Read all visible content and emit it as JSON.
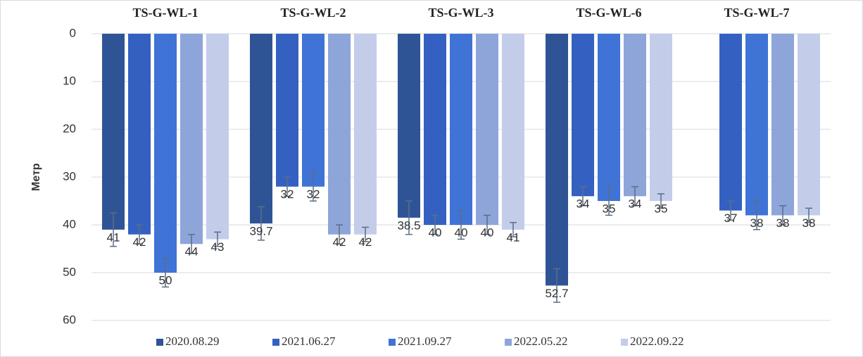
{
  "chart_data": {
    "type": "bar",
    "ylabel": "Метр",
    "categories": [
      "TS-G-WL-1",
      "TS-G-WL-2",
      "TS-G-WL-3",
      "TS-G-WL-6",
      "TS-G-WL-7"
    ],
    "series": [
      {
        "name": "2020.08.29",
        "color": "#2f5496",
        "values": [
          41,
          39.7,
          38.5,
          52.7,
          null
        ],
        "errors": [
          3.5,
          3.5,
          3.5,
          3.5,
          null
        ]
      },
      {
        "name": "2021.06.27",
        "color": "#3461c1",
        "values": [
          42,
          32,
          40,
          34,
          37
        ],
        "errors": [
          2,
          2,
          2,
          2,
          2
        ]
      },
      {
        "name": "2021.09.27",
        "color": "#3f73d6",
        "values": [
          50,
          32,
          40,
          35,
          38
        ],
        "errors": [
          3,
          3,
          3,
          3,
          3
        ]
      },
      {
        "name": "2022.05.22",
        "color": "#8ea5da",
        "values": [
          44,
          42,
          40,
          34,
          38
        ],
        "errors": [
          2,
          2,
          2,
          2,
          2
        ]
      },
      {
        "name": "2022.09.22",
        "color": "#c3cdea",
        "values": [
          43,
          42,
          41,
          35,
          38
        ],
        "errors": [
          1.5,
          1.5,
          1.5,
          1.5,
          1.5
        ]
      }
    ],
    "ylim": [
      0,
      60
    ],
    "yticks": [
      0,
      10,
      20,
      30,
      40,
      50,
      60
    ],
    "y_reversed": true,
    "grid": true,
    "legend": "bottom"
  }
}
